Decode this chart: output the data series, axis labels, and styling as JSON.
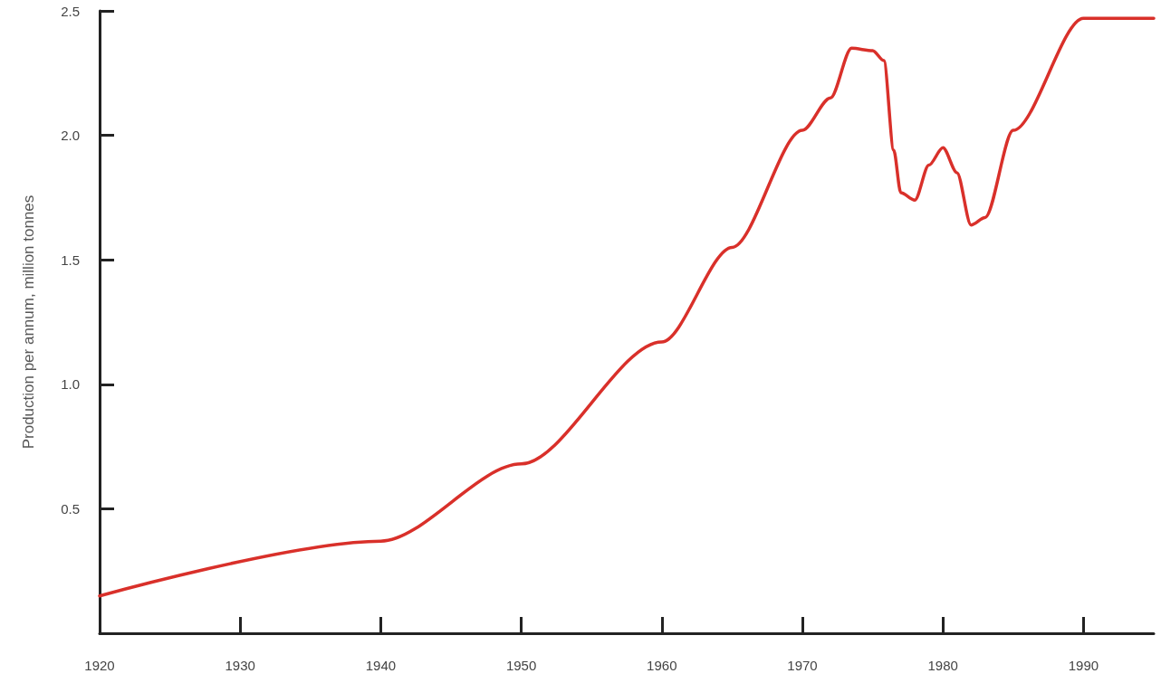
{
  "chart_data": {
    "type": "line",
    "ylabel": "Production per annum, million tonnes",
    "x": [
      1920,
      1940,
      1950,
      1960,
      1965,
      1970,
      1972,
      1973.5,
      1975,
      1975.8,
      1976.5,
      1977,
      1978,
      1979,
      1980,
      1981,
      1982,
      1983,
      1985,
      1990,
      1995
    ],
    "series": [
      {
        "color": "#d9302a",
        "values": [
          0.15,
          0.37,
          0.68,
          1.17,
          1.55,
          2.02,
          2.15,
          2.35,
          2.34,
          2.3,
          1.94,
          1.77,
          1.74,
          1.88,
          1.95,
          1.85,
          1.64,
          1.67,
          2.02,
          2.47,
          2.47
        ]
      }
    ],
    "xlim": [
      1920,
      1995
    ],
    "xticks": [
      1920,
      1930,
      1940,
      1950,
      1960,
      1970,
      1980,
      1990
    ],
    "ylim": [
      0,
      2.5
    ],
    "yticks": [
      0.5,
      {
        "value": 1,
        "label": "1.0"
      },
      1.5,
      {
        "value": 2,
        "label": "2.0"
      },
      2.5
    ],
    "grid": false,
    "marker": "none",
    "line_style": "solid"
  }
}
